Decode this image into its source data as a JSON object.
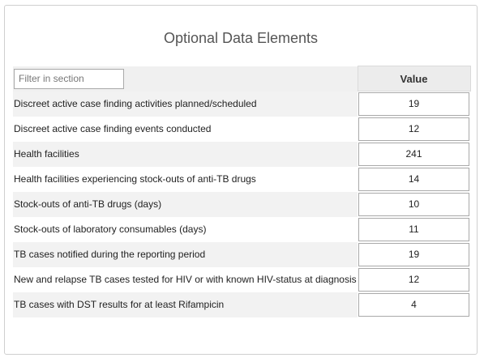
{
  "section": {
    "title": "Optional Data Elements",
    "filter_placeholder": "Filter in section",
    "value_header": "Value"
  },
  "rows": [
    {
      "label": "Discreet active case finding activities planned/scheduled",
      "value": "19"
    },
    {
      "label": "Discreet active case finding events conducted",
      "value": "12"
    },
    {
      "label": "Health facilities",
      "value": "241"
    },
    {
      "label": "Health facilities experiencing stock-outs of anti-TB drugs",
      "value": "14"
    },
    {
      "label": "Stock-outs of anti-TB drugs (days)",
      "value": "10"
    },
    {
      "label": "Stock-outs of laboratory consumables (days)",
      "value": "11"
    },
    {
      "label": "TB cases notified during the reporting period",
      "value": "19"
    },
    {
      "label": "New and relapse TB cases tested for HIV or with known HIV-status at diagnosis",
      "value": "12"
    },
    {
      "label": "TB cases with DST results for at least Rifampicin",
      "value": "4"
    }
  ]
}
